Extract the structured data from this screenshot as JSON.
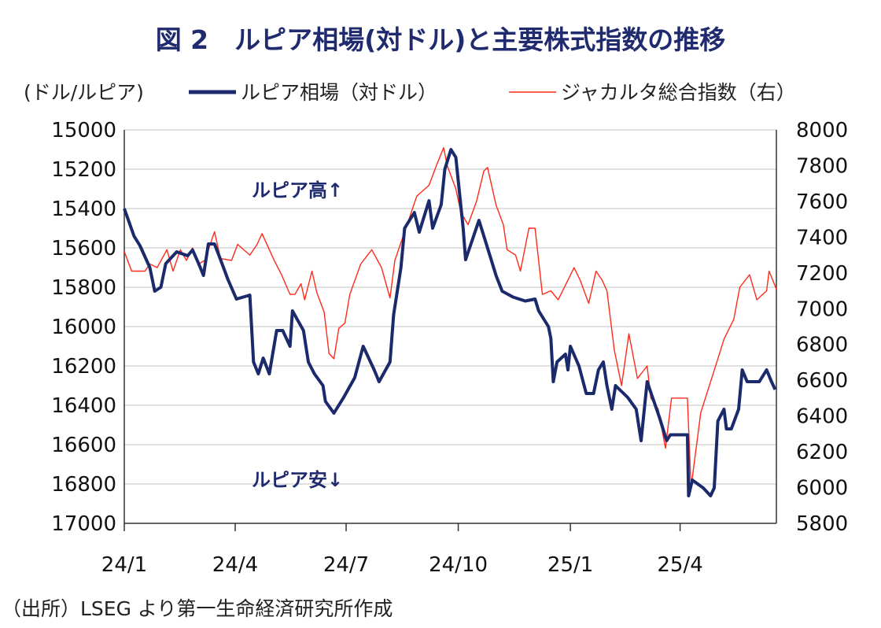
{
  "chart_data": {
    "type": "line",
    "title": "図 2　ルピア相場(対ドル)と主要株式指数の推移",
    "ylabel_left": "(ドル/ルピア)",
    "source": "（出所）LSEG より第一生命経済研究所作成",
    "x_range": [
      "2024-01-01",
      "2025-06-19"
    ],
    "x_ticks": [
      {
        "date": "2024-01-01",
        "label": "24/1"
      },
      {
        "date": "2024-04-01",
        "label": "24/4"
      },
      {
        "date": "2024-07-01",
        "label": "24/7"
      },
      {
        "date": "2024-10-01",
        "label": "24/10"
      },
      {
        "date": "2025-01-01",
        "label": "25/1"
      },
      {
        "date": "2025-04-01",
        "label": "25/4"
      }
    ],
    "y_left": {
      "min": 15000,
      "max": 17000,
      "inverted": true,
      "ticks": [
        "15000",
        "15200",
        "15400",
        "15600",
        "15800",
        "16000",
        "16200",
        "16400",
        "16600",
        "16800",
        "17000"
      ]
    },
    "y_right": {
      "min": 5800,
      "max": 8000,
      "ticks": [
        "8000",
        "7800",
        "7600",
        "7400",
        "7200",
        "7000",
        "6800",
        "6600",
        "6400",
        "6200",
        "6000",
        "5800"
      ]
    },
    "grid": true,
    "legend_position": "top",
    "annotations": [
      {
        "text": "ルピア高↑"
      },
      {
        "text": "ルピア安↓"
      }
    ],
    "series": [
      {
        "name": "ルピア相場（対ドル）",
        "axis": "left",
        "color": "#1b2a6b",
        "points": [
          [
            "2024-01-01",
            15400
          ],
          [
            "2024-01-09",
            15540
          ],
          [
            "2024-01-14",
            15590
          ],
          [
            "2024-01-22",
            15700
          ],
          [
            "2024-01-26",
            15820
          ],
          [
            "2024-01-31",
            15800
          ],
          [
            "2024-02-04",
            15680
          ],
          [
            "2024-02-13",
            15620
          ],
          [
            "2024-02-22",
            15640
          ],
          [
            "2024-02-26",
            15610
          ],
          [
            "2024-03-02",
            15680
          ],
          [
            "2024-03-06",
            15740
          ],
          [
            "2024-03-10",
            15580
          ],
          [
            "2024-03-15",
            15580
          ],
          [
            "2024-03-20",
            15660
          ],
          [
            "2024-03-26",
            15760
          ],
          [
            "2024-04-02",
            15860
          ],
          [
            "2024-04-13",
            15840
          ],
          [
            "2024-04-16",
            16180
          ],
          [
            "2024-04-20",
            16240
          ],
          [
            "2024-04-24",
            16160
          ],
          [
            "2024-04-29",
            16240
          ],
          [
            "2024-05-05",
            16020
          ],
          [
            "2024-05-10",
            16020
          ],
          [
            "2024-05-16",
            16100
          ],
          [
            "2024-05-18",
            15920
          ],
          [
            "2024-05-27",
            16020
          ],
          [
            "2024-05-31",
            16180
          ],
          [
            "2024-06-05",
            16240
          ],
          [
            "2024-06-12",
            16300
          ],
          [
            "2024-06-14",
            16380
          ],
          [
            "2024-06-21",
            16440
          ],
          [
            "2024-06-29",
            16360
          ],
          [
            "2024-07-08",
            16260
          ],
          [
            "2024-07-15",
            16100
          ],
          [
            "2024-07-24",
            16220
          ],
          [
            "2024-07-28",
            16280
          ],
          [
            "2024-08-06",
            16180
          ],
          [
            "2024-08-09",
            15940
          ],
          [
            "2024-08-15",
            15700
          ],
          [
            "2024-08-18",
            15500
          ],
          [
            "2024-08-26",
            15420
          ],
          [
            "2024-08-30",
            15520
          ],
          [
            "2024-09-07",
            15360
          ],
          [
            "2024-09-10",
            15500
          ],
          [
            "2024-09-17",
            15380
          ],
          [
            "2024-09-20",
            15200
          ],
          [
            "2024-09-25",
            15100
          ],
          [
            "2024-09-29",
            15140
          ],
          [
            "2024-10-05",
            15500
          ],
          [
            "2024-10-07",
            15660
          ],
          [
            "2024-10-18",
            15460
          ],
          [
            "2024-10-27",
            15640
          ],
          [
            "2024-11-01",
            15740
          ],
          [
            "2024-11-06",
            15820
          ],
          [
            "2024-11-15",
            15850
          ],
          [
            "2024-11-25",
            15870
          ],
          [
            "2024-12-03",
            15860
          ],
          [
            "2024-12-06",
            15920
          ],
          [
            "2024-12-14",
            16000
          ],
          [
            "2024-12-16",
            16060
          ],
          [
            "2024-12-18",
            16280
          ],
          [
            "2024-12-21",
            16180
          ],
          [
            "2024-12-28",
            16140
          ],
          [
            "2024-12-30",
            16220
          ],
          [
            "2025-01-01",
            16100
          ],
          [
            "2025-01-08",
            16200
          ],
          [
            "2025-01-14",
            16340
          ],
          [
            "2025-01-20",
            16340
          ],
          [
            "2025-01-24",
            16220
          ],
          [
            "2025-01-28",
            16180
          ],
          [
            "2025-01-31",
            16300
          ],
          [
            "2025-02-04",
            16420
          ],
          [
            "2025-02-07",
            16300
          ],
          [
            "2025-02-17",
            16360
          ],
          [
            "2025-02-24",
            16420
          ],
          [
            "2025-02-28",
            16580
          ],
          [
            "2025-03-05",
            16280
          ],
          [
            "2025-03-15",
            16460
          ],
          [
            "2025-03-21",
            16580
          ],
          [
            "2025-03-24",
            16550
          ],
          [
            "2025-04-07",
            16550
          ],
          [
            "2025-04-08",
            16860
          ],
          [
            "2025-04-11",
            16780
          ],
          [
            "2025-04-20",
            16820
          ],
          [
            "2025-04-26",
            16860
          ],
          [
            "2025-04-29",
            16820
          ],
          [
            "2025-05-02",
            16480
          ],
          [
            "2025-05-07",
            16420
          ],
          [
            "2025-05-09",
            16520
          ],
          [
            "2025-05-13",
            16520
          ],
          [
            "2025-05-19",
            16420
          ],
          [
            "2025-05-22",
            16220
          ],
          [
            "2025-05-26",
            16280
          ],
          [
            "2025-06-05",
            16280
          ],
          [
            "2025-06-11",
            16220
          ],
          [
            "2025-06-15",
            16280
          ],
          [
            "2025-06-18",
            16320
          ]
        ]
      },
      {
        "name": "ジャカルタ総合指数（右）",
        "axis": "right",
        "color": "#ff2a1a",
        "points": [
          [
            "2024-01-01",
            7320
          ],
          [
            "2024-01-07",
            7210
          ],
          [
            "2024-01-18",
            7210
          ],
          [
            "2024-01-22",
            7250
          ],
          [
            "2024-01-28",
            7230
          ],
          [
            "2024-02-05",
            7330
          ],
          [
            "2024-02-10",
            7210
          ],
          [
            "2024-02-16",
            7330
          ],
          [
            "2024-02-21",
            7270
          ],
          [
            "2024-02-26",
            7340
          ],
          [
            "2024-03-02",
            7250
          ],
          [
            "2024-03-07",
            7270
          ],
          [
            "2024-03-15",
            7430
          ],
          [
            "2024-03-20",
            7280
          ],
          [
            "2024-03-29",
            7270
          ],
          [
            "2024-04-03",
            7360
          ],
          [
            "2024-04-13",
            7300
          ],
          [
            "2024-04-19",
            7360
          ],
          [
            "2024-04-23",
            7420
          ],
          [
            "2024-05-03",
            7270
          ],
          [
            "2024-05-09",
            7190
          ],
          [
            "2024-05-16",
            7080
          ],
          [
            "2024-05-20",
            7080
          ],
          [
            "2024-05-25",
            7140
          ],
          [
            "2024-05-28",
            7050
          ],
          [
            "2024-06-03",
            7210
          ],
          [
            "2024-06-07",
            7090
          ],
          [
            "2024-06-13",
            6980
          ],
          [
            "2024-06-17",
            6750
          ],
          [
            "2024-06-21",
            6720
          ],
          [
            "2024-06-25",
            6890
          ],
          [
            "2024-06-30",
            6920
          ],
          [
            "2024-07-04",
            7080
          ],
          [
            "2024-07-13",
            7250
          ],
          [
            "2024-07-22",
            7330
          ],
          [
            "2024-07-30",
            7230
          ],
          [
            "2024-08-06",
            7060
          ],
          [
            "2024-08-10",
            7270
          ],
          [
            "2024-08-18",
            7430
          ],
          [
            "2024-08-28",
            7630
          ],
          [
            "2024-09-07",
            7690
          ],
          [
            "2024-09-13",
            7800
          ],
          [
            "2024-09-19",
            7900
          ],
          [
            "2024-09-22",
            7800
          ],
          [
            "2024-09-29",
            7670
          ],
          [
            "2024-10-03",
            7540
          ],
          [
            "2024-10-09",
            7470
          ],
          [
            "2024-10-16",
            7600
          ],
          [
            "2024-10-22",
            7770
          ],
          [
            "2024-10-25",
            7790
          ],
          [
            "2024-11-01",
            7580
          ],
          [
            "2024-11-07",
            7470
          ],
          [
            "2024-11-10",
            7330
          ],
          [
            "2024-11-17",
            7300
          ],
          [
            "2024-11-21",
            7210
          ],
          [
            "2024-11-28",
            7450
          ],
          [
            "2024-12-03",
            7450
          ],
          [
            "2024-12-09",
            7080
          ],
          [
            "2024-12-16",
            7100
          ],
          [
            "2024-12-22",
            7050
          ],
          [
            "2024-12-30",
            7160
          ],
          [
            "2025-01-04",
            7230
          ],
          [
            "2025-01-09",
            7160
          ],
          [
            "2025-01-16",
            7030
          ],
          [
            "2025-01-22",
            7210
          ],
          [
            "2025-01-27",
            7160
          ],
          [
            "2025-01-31",
            7100
          ],
          [
            "2025-02-06",
            6770
          ],
          [
            "2025-02-12",
            6570
          ],
          [
            "2025-02-18",
            6860
          ],
          [
            "2025-02-25",
            6610
          ],
          [
            "2025-03-05",
            6680
          ],
          [
            "2025-03-08",
            6500
          ],
          [
            "2025-03-14",
            6440
          ],
          [
            "2025-03-20",
            6220
          ],
          [
            "2025-03-25",
            6500
          ],
          [
            "2025-04-07",
            6500
          ],
          [
            "2025-04-10",
            6000
          ],
          [
            "2025-04-18",
            6420
          ],
          [
            "2025-04-25",
            6570
          ],
          [
            "2025-05-02",
            6720
          ],
          [
            "2025-05-07",
            6830
          ],
          [
            "2025-05-15",
            6940
          ],
          [
            "2025-05-20",
            7120
          ],
          [
            "2025-05-28",
            7190
          ],
          [
            "2025-06-03",
            7050
          ],
          [
            "2025-06-11",
            7100
          ],
          [
            "2025-06-13",
            7210
          ],
          [
            "2025-06-19",
            7110
          ]
        ]
      }
    ]
  }
}
